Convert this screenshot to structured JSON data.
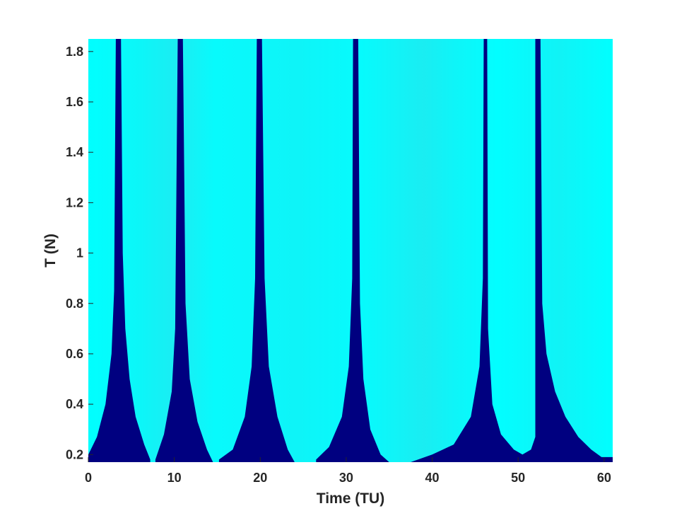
{
  "chart_data": {
    "type": "heatmap",
    "title": "",
    "xlabel": "Time (TU)",
    "ylabel": "T (N)",
    "xlim": [
      0,
      61
    ],
    "ylim": [
      0.17,
      1.85
    ],
    "xticks": [
      0,
      10,
      20,
      30,
      40,
      50,
      60
    ],
    "xtick_labels": [
      "0",
      "10",
      "20",
      "30",
      "40",
      "50",
      "60"
    ],
    "yticks": [
      0.2,
      0.4,
      0.6,
      0.8,
      1,
      1.2,
      1.4,
      1.6,
      1.8
    ],
    "ytick_labels": [
      "0.2",
      "0.4",
      "0.6",
      "0.8",
      "1",
      "1.2",
      "1.4",
      "1.6",
      "1.8"
    ],
    "grid": false,
    "colors": {
      "background_region": "#00ffff",
      "filled_region": "#000080"
    },
    "dark_regions": [
      {
        "peak_time": 3.5,
        "spike_halfwidth": 0.3,
        "boundary": [
          [
            0.0,
            0.2
          ],
          [
            1.0,
            0.27
          ],
          [
            2.0,
            0.4
          ],
          [
            2.7,
            0.6
          ],
          [
            3.0,
            0.85
          ],
          [
            3.2,
            1.85
          ],
          [
            3.8,
            1.85
          ],
          [
            4.0,
            1.0
          ],
          [
            4.3,
            0.7
          ],
          [
            4.8,
            0.5
          ],
          [
            5.5,
            0.35
          ],
          [
            6.5,
            0.24
          ],
          [
            7.2,
            0.18
          ]
        ]
      },
      {
        "peak_time": 10.7,
        "spike_halfwidth": 0.3,
        "boundary": [
          [
            7.8,
            0.18
          ],
          [
            8.8,
            0.28
          ],
          [
            9.7,
            0.45
          ],
          [
            10.1,
            0.7
          ],
          [
            10.4,
            1.85
          ],
          [
            11.0,
            1.85
          ],
          [
            11.3,
            0.8
          ],
          [
            11.8,
            0.5
          ],
          [
            12.7,
            0.33
          ],
          [
            13.8,
            0.22
          ],
          [
            14.5,
            0.17
          ]
        ]
      },
      {
        "peak_time": 19.9,
        "spike_halfwidth": 0.3,
        "boundary": [
          [
            15.2,
            0.18
          ],
          [
            16.8,
            0.22
          ],
          [
            18.2,
            0.35
          ],
          [
            19.0,
            0.55
          ],
          [
            19.4,
            0.9
          ],
          [
            19.6,
            1.85
          ],
          [
            20.2,
            1.85
          ],
          [
            20.5,
            0.9
          ],
          [
            21.0,
            0.55
          ],
          [
            22.0,
            0.35
          ],
          [
            23.2,
            0.22
          ],
          [
            24.0,
            0.17
          ]
        ]
      },
      {
        "peak_time": 31.1,
        "spike_halfwidth": 0.3,
        "boundary": [
          [
            26.5,
            0.18
          ],
          [
            28.0,
            0.23
          ],
          [
            29.5,
            0.35
          ],
          [
            30.3,
            0.55
          ],
          [
            30.7,
            0.9
          ],
          [
            30.8,
            1.85
          ],
          [
            31.4,
            1.85
          ],
          [
            31.6,
            0.8
          ],
          [
            32.0,
            0.5
          ],
          [
            32.8,
            0.3
          ],
          [
            34.0,
            0.2
          ],
          [
            35.0,
            0.17
          ]
        ]
      },
      {
        "peak_time": 46.2,
        "spike_halfwidth": 0.25,
        "boundary": [
          [
            37.5,
            0.17
          ],
          [
            40.0,
            0.2
          ],
          [
            42.5,
            0.24
          ],
          [
            44.5,
            0.35
          ],
          [
            45.5,
            0.55
          ],
          [
            45.9,
            0.9
          ],
          [
            46.0,
            1.85
          ],
          [
            46.4,
            1.85
          ],
          [
            46.5,
            0.7
          ],
          [
            47.0,
            0.4
          ],
          [
            48.0,
            0.28
          ],
          [
            49.5,
            0.22
          ],
          [
            50.5,
            0.2
          ],
          [
            51.5,
            0.22
          ],
          [
            52.0,
            0.27
          ]
        ]
      },
      {
        "peak_time": 52.3,
        "spike_halfwidth": 0.35,
        "boundary": [
          [
            52.0,
            0.27
          ],
          [
            52.0,
            1.85
          ],
          [
            52.6,
            1.85
          ],
          [
            52.8,
            0.8
          ],
          [
            53.3,
            0.6
          ],
          [
            54.3,
            0.45
          ],
          [
            55.5,
            0.35
          ],
          [
            57.0,
            0.27
          ],
          [
            58.5,
            0.22
          ],
          [
            59.7,
            0.19
          ],
          [
            61.0,
            0.19
          ]
        ]
      }
    ]
  }
}
